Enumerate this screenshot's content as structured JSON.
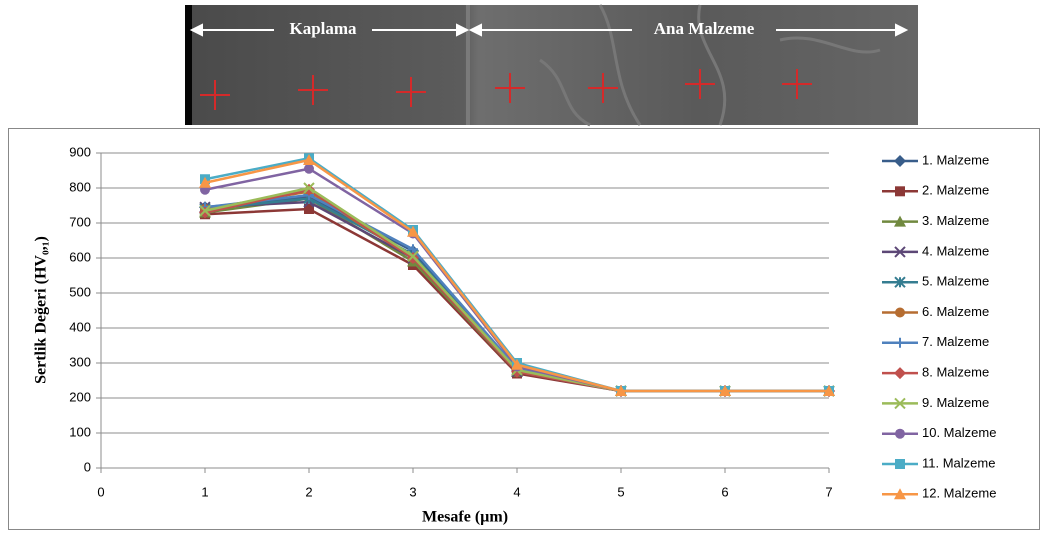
{
  "image": {
    "labels": [
      "Kaplama",
      "Ana Malzeme"
    ]
  },
  "chart_data": {
    "type": "line",
    "x_label": "Mesafe (µm)",
    "y_label": "Sertlik Değeri (HV₀,₁)",
    "x": [
      1,
      2,
      3,
      4,
      5,
      6,
      7
    ],
    "xlim": [
      0,
      7
    ],
    "xticks": [
      0,
      1,
      2,
      3,
      4,
      5,
      6,
      7
    ],
    "ylim": [
      0,
      900
    ],
    "yticks": [
      0,
      100,
      200,
      300,
      400,
      500,
      600,
      700,
      800,
      900
    ],
    "grid": true,
    "legend": "right",
    "series": [
      {
        "name": "1. Malzeme",
        "color": "#385D8A",
        "marker": "diamond",
        "values": [
          745,
          775,
          620,
          280,
          220,
          220,
          220
        ]
      },
      {
        "name": "2. Malzeme",
        "color": "#8C3836",
        "marker": "square",
        "values": [
          725,
          740,
          580,
          270,
          220,
          220,
          220
        ]
      },
      {
        "name": "3. Malzeme",
        "color": "#71893F",
        "marker": "triangle",
        "values": [
          730,
          770,
          590,
          275,
          220,
          220,
          220
        ]
      },
      {
        "name": "4. Malzeme",
        "color": "#5C4776",
        "marker": "x",
        "values": [
          745,
          760,
          600,
          275,
          220,
          220,
          220
        ]
      },
      {
        "name": "5. Malzeme",
        "color": "#357D91",
        "marker": "star",
        "values": [
          740,
          770,
          610,
          280,
          220,
          220,
          220
        ]
      },
      {
        "name": "6. Malzeme",
        "color": "#B66D31",
        "marker": "circle",
        "values": [
          740,
          790,
          600,
          285,
          220,
          220,
          220
        ]
      },
      {
        "name": "7. Malzeme",
        "color": "#4F81BD",
        "marker": "plus",
        "values": [
          745,
          780,
          625,
          285,
          220,
          220,
          220
        ]
      },
      {
        "name": "8. Malzeme",
        "color": "#C0504D",
        "marker": "diamond",
        "values": [
          730,
          795,
          600,
          275,
          220,
          220,
          220
        ]
      },
      {
        "name": "9. Malzeme",
        "color": "#9BBB59",
        "marker": "x",
        "values": [
          735,
          800,
          605,
          280,
          220,
          220,
          220
        ]
      },
      {
        "name": "10. Malzeme",
        "color": "#8064A2",
        "marker": "circle",
        "values": [
          795,
          855,
          670,
          290,
          220,
          220,
          220
        ]
      },
      {
        "name": "11. Malzeme",
        "color": "#4BACC6",
        "marker": "square",
        "values": [
          825,
          885,
          680,
          300,
          220,
          220,
          220
        ]
      },
      {
        "name": "12. Malzeme",
        "color": "#F79646",
        "marker": "triangle",
        "values": [
          815,
          880,
          675,
          295,
          220,
          220,
          220
        ]
      }
    ]
  }
}
